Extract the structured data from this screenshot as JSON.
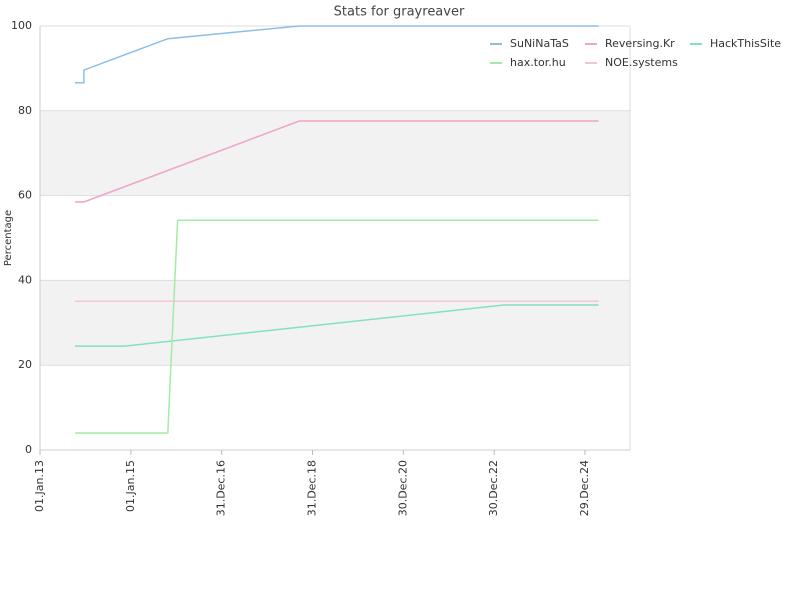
{
  "chart_data": {
    "type": "line",
    "title": "Stats for grayreaver",
    "y_label": "Percentage",
    "xlim": [
      "2013-01-01",
      "2025-12-26"
    ],
    "xticks": [
      {
        "value": "2013-01-01",
        "label": "01.Jan.13"
      },
      {
        "value": "2015-01-01",
        "label": "01.Jan.15"
      },
      {
        "value": "2016-12-31",
        "label": "31.Dec.16"
      },
      {
        "value": "2018-12-31",
        "label": "31.Dec.18"
      },
      {
        "value": "2020-12-30",
        "label": "30.Dec.20"
      },
      {
        "value": "2022-12-30",
        "label": "30.Dec.22"
      },
      {
        "value": "2024-12-29",
        "label": "29.Dec.24"
      }
    ],
    "ylim": [
      0,
      100
    ],
    "yticks": [
      0,
      20,
      40,
      60,
      80,
      100
    ],
    "grid": true,
    "legend": "top-right",
    "series": [
      {
        "name": "SuNiNaTaS",
        "color": "#8cbfe8",
        "x": [
          "2013-10-09",
          "2013-12-20",
          "2013-12-20",
          "2015-10-25",
          "2018-09-16",
          "2025-04-18"
        ],
        "values": [
          86.6,
          86.6,
          89.6,
          97,
          100,
          100
        ]
      },
      {
        "name": "Reversing.Kr",
        "color": "#f2a2c8",
        "x": [
          "2013-10-09",
          "2013-12-20",
          "2018-09-16",
          "2025-04-18"
        ],
        "values": [
          58.5,
          58.5,
          77.6,
          77.6
        ]
      },
      {
        "name": "HackThisSite",
        "color": "#84e0c4",
        "x": [
          "2013-10-09",
          "2014-11-14",
          "2023-03-18",
          "2025-04-18"
        ],
        "values": [
          24.5,
          24.5,
          34.2,
          34.2
        ]
      },
      {
        "name": "hax.tor.hu",
        "color": "#a4eca4",
        "x": [
          "2013-10-09",
          "2015-10-25",
          "2016-01-12",
          "2025-04-18"
        ],
        "values": [
          4,
          4,
          54.2,
          54.2
        ]
      },
      {
        "name": "NOE.systems",
        "color": "#f4c6d0",
        "x": [
          "2013-10-09",
          "2025-04-18"
        ],
        "values": [
          35.1,
          35.1
        ]
      }
    ]
  }
}
